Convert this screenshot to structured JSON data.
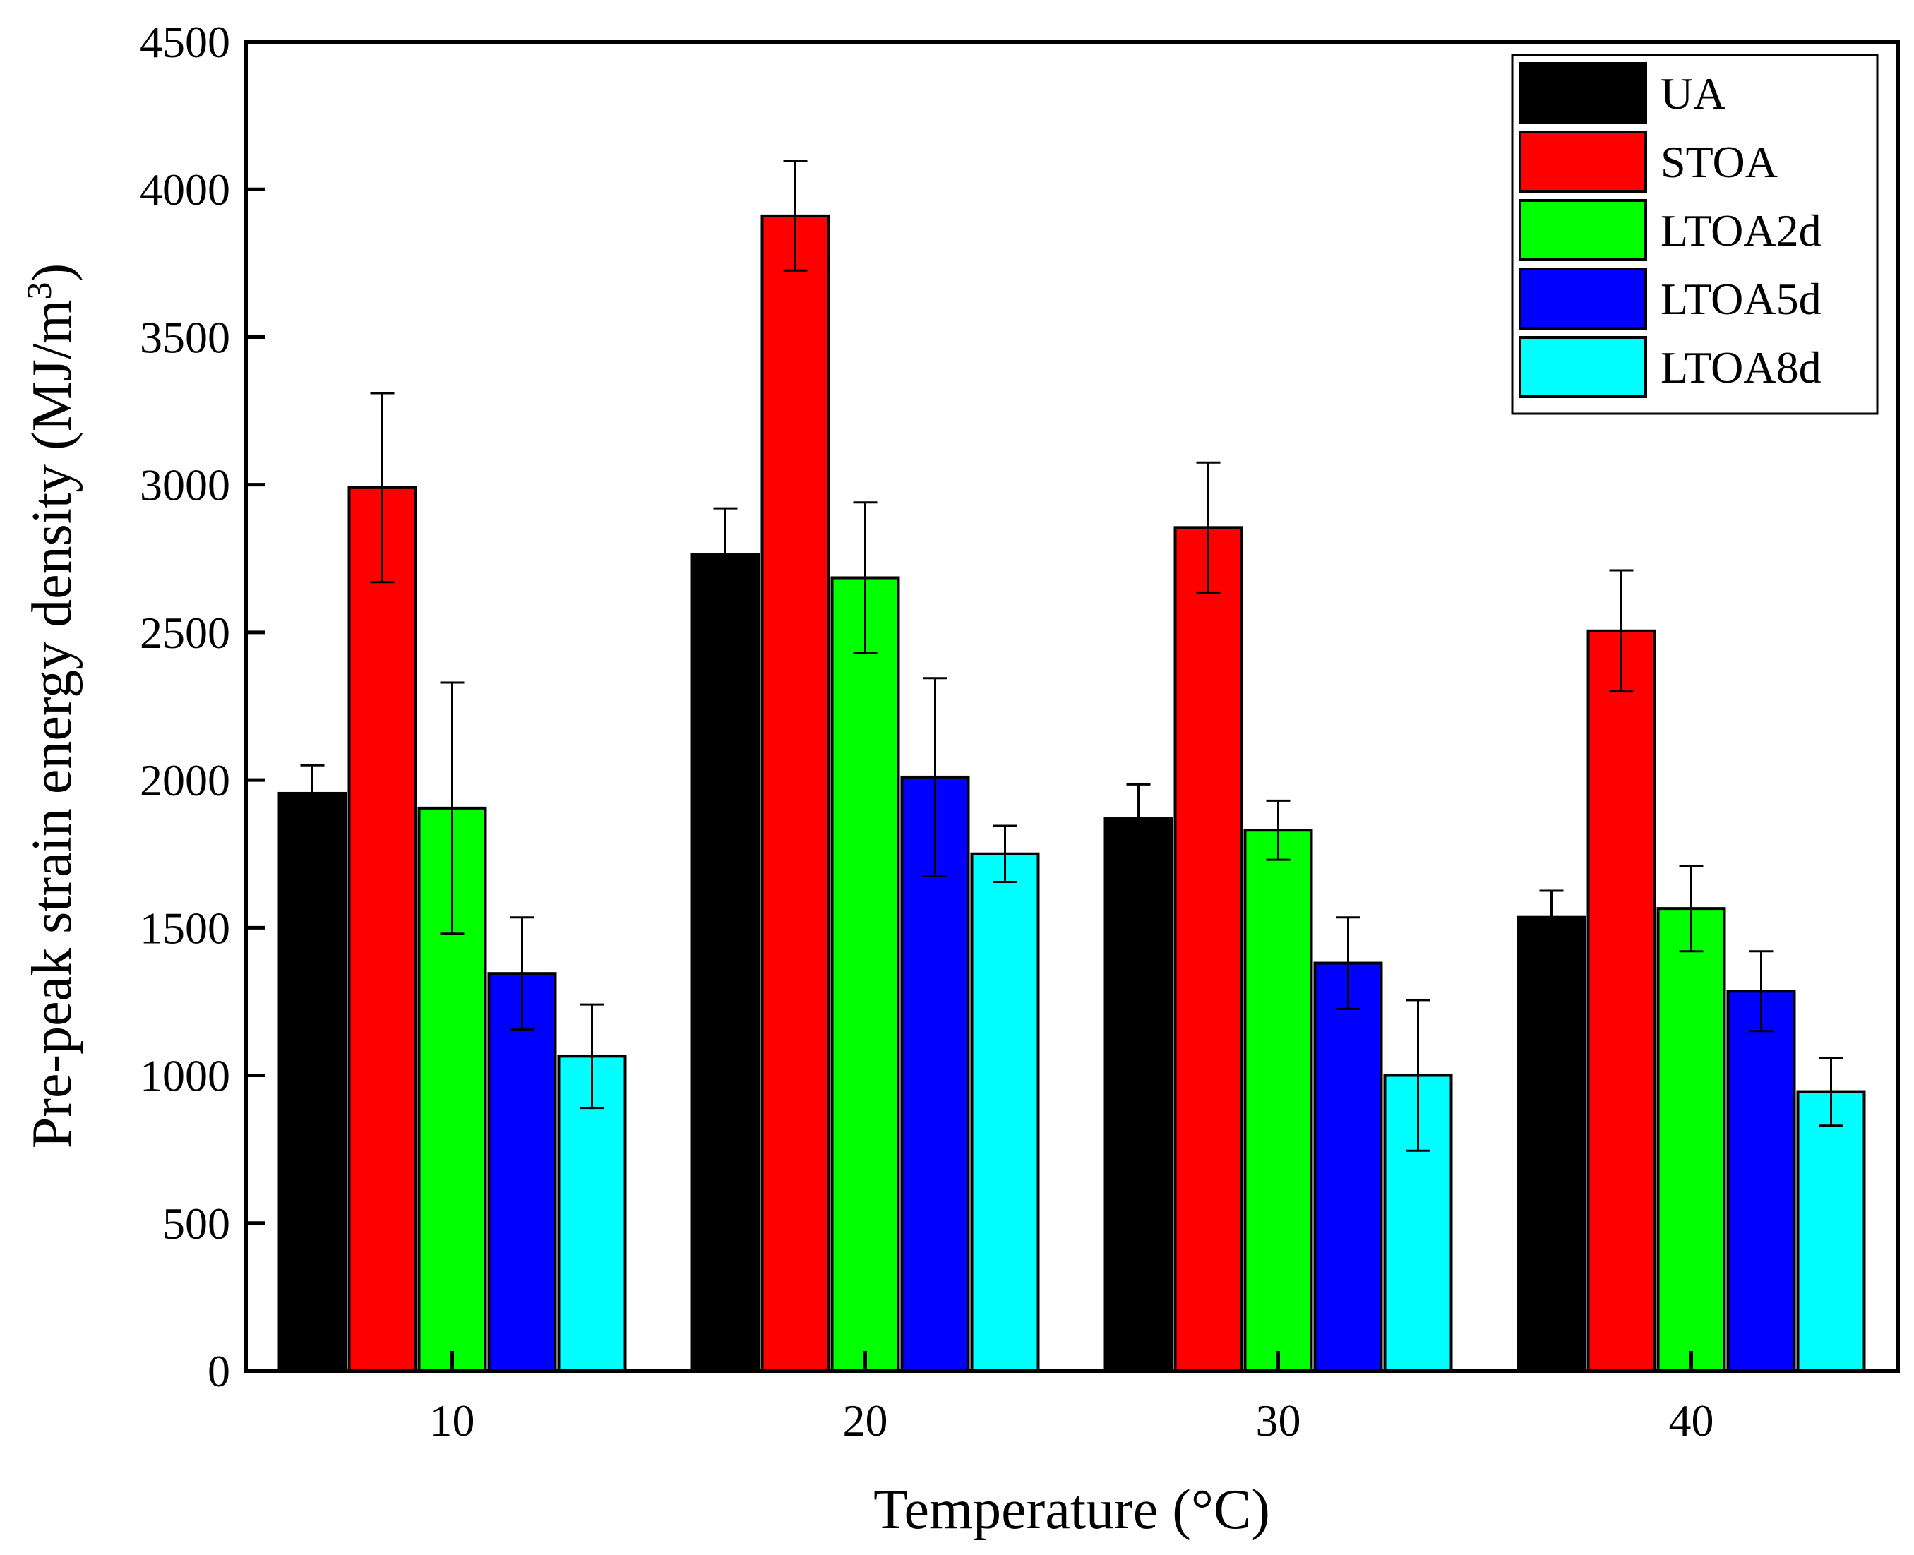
{
  "chart_data": {
    "type": "bar",
    "title": "",
    "xlabel": "Temperature (°C)",
    "ylabel_main": "Pre-peak strain energy density (MJ/m",
    "ylabel_sup": "3",
    "ylabel_close": ")",
    "ylim": [
      0,
      4500
    ],
    "yticks": [
      0,
      500,
      1000,
      1500,
      2000,
      2500,
      3000,
      3500,
      4000,
      4500
    ],
    "categories": [
      "10",
      "20",
      "30",
      "40"
    ],
    "legend_position": "top-right",
    "series": [
      {
        "name": "UA",
        "color": "#000000",
        "values": [
          1955,
          2765,
          1870,
          1535
        ],
        "errors": [
          95,
          155,
          115,
          90
        ]
      },
      {
        "name": "STOA",
        "color": "#ff0000",
        "values": [
          2990,
          3910,
          2855,
          2505
        ],
        "errors": [
          320,
          185,
          220,
          205
        ]
      },
      {
        "name": "LTOA2d",
        "color": "#00ff00",
        "values": [
          1905,
          2685,
          1830,
          1565
        ],
        "errors": [
          425,
          255,
          100,
          145
        ]
      },
      {
        "name": "LTOA5d",
        "color": "#0000ff",
        "values": [
          1345,
          2010,
          1380,
          1285
        ],
        "errors": [
          190,
          335,
          155,
          135
        ]
      },
      {
        "name": "LTOA8d",
        "color": "#00ffff",
        "values": [
          1065,
          1750,
          1000,
          945
        ],
        "errors": [
          175,
          95,
          255,
          115
        ]
      }
    ]
  }
}
